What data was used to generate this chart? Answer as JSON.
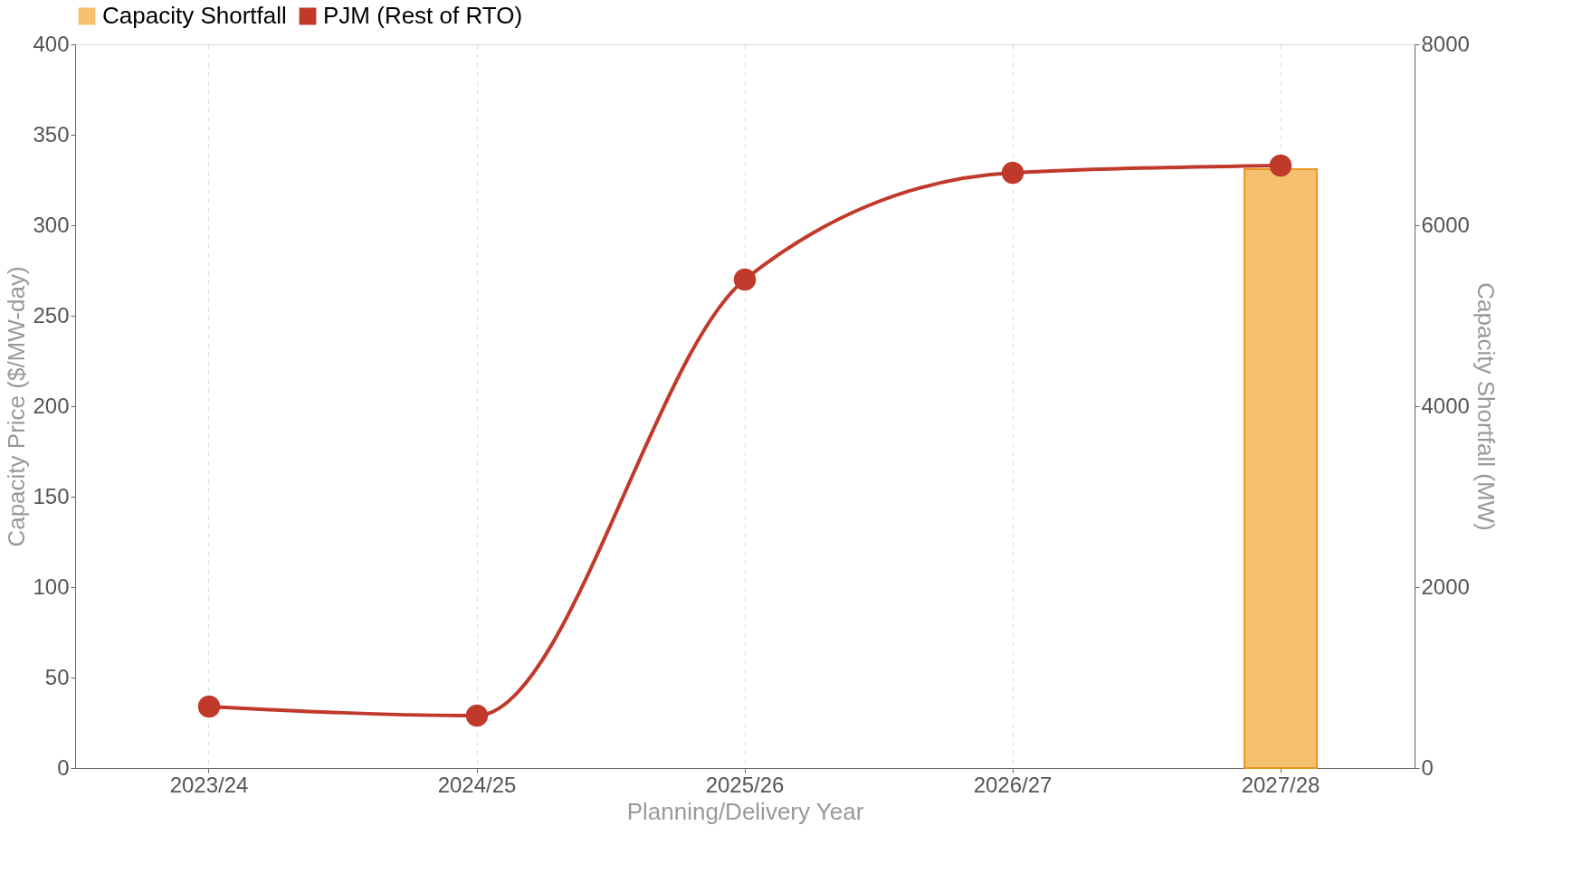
{
  "chart_data": {
    "type": "line",
    "xlabel": "Planning/Delivery Year",
    "ylabel": "Capacity Price ($/MW-day)",
    "y2label": "Capacity Shortfall (MW)",
    "categories": [
      "2023/24",
      "2024/25",
      "2025/26",
      "2026/27",
      "2027/28"
    ],
    "series": [
      {
        "name": "Capacity Shortfall",
        "type": "bar",
        "axis": "y2",
        "color": "#f5c06f",
        "values": [
          null,
          null,
          null,
          null,
          6620
        ]
      },
      {
        "name": "PJM (Rest of RTO)",
        "color": "#c0392b",
        "values": [
          34,
          29,
          270,
          329,
          333
        ]
      }
    ],
    "ylim": [
      0,
      400
    ],
    "yticks": [
      0,
      50,
      100,
      150,
      200,
      250,
      300,
      350,
      400
    ],
    "y2lim": [
      0,
      8000
    ],
    "y2ticks": [
      0,
      2000,
      4000,
      6000,
      8000
    ],
    "grid": "x",
    "legend": "top",
    "marker": "circle",
    "line_style": "solid"
  }
}
